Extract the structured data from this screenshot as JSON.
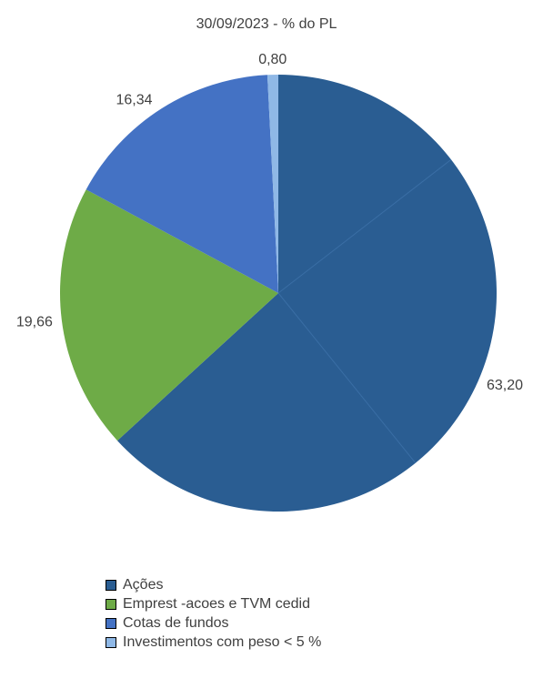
{
  "chart_data": {
    "type": "pie",
    "title": "30/09/2023 - % do PL",
    "slices": [
      {
        "name": "Ações",
        "value": 63.2,
        "label": "63,20",
        "color": "#2a5d92"
      },
      {
        "name": "Emprest -acoes e TVM cedid",
        "value": 19.66,
        "label": "19,66",
        "color": "#6eab47"
      },
      {
        "name": "Cotas de fundos",
        "value": 16.34,
        "label": "16,34",
        "color": "#4472c4"
      },
      {
        "name": "Investimentos com peso < 5 %",
        "value": 0.8,
        "label": "0,80",
        "color": "#8fb8e6"
      }
    ],
    "legend_position": "bottom"
  }
}
